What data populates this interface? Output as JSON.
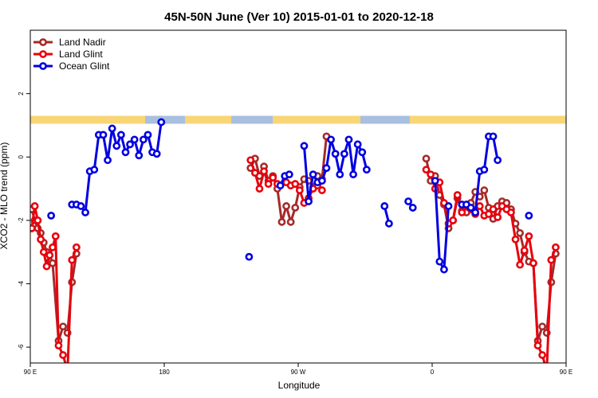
{
  "chart_data": {
    "type": "line",
    "title": "45N-50N June (Ver 10)   2015-01-01 to 2020-12-18",
    "xlabel": "Longitude",
    "ylabel": "XCO2 - MLO trend (ppm)",
    "xlim": [
      90,
      450
    ],
    "ylim": [
      -6.5,
      4.0
    ],
    "x_ticks": [
      {
        "value": 90,
        "label": "90 E"
      },
      {
        "value": 180,
        "label": "180"
      },
      {
        "value": 270,
        "label": "90 W"
      },
      {
        "value": 360,
        "label": "0"
      },
      {
        "value": 450,
        "label": "90 E"
      },
      {
        "value": 540,
        "label": "180"
      }
    ],
    "y_ticks": [
      {
        "value": 2,
        "label": "2"
      },
      {
        "value": 0,
        "label": "0"
      },
      {
        "value": -2,
        "label": "-2"
      },
      {
        "value": -4,
        "label": "-4"
      },
      {
        "value": -6,
        "label": "-6"
      }
    ],
    "grid": false,
    "legend_position": "top-left",
    "band": {
      "y_top": 1.3,
      "y_bottom": 1.05,
      "land_color": "#f8d676",
      "ocean_color": "#a9bfe0"
    },
    "series": [
      {
        "name": "Land Nadir",
        "color": "#a52a2a",
        "points": [
          [
            91,
            -1.65
          ],
          [
            93,
            -2.0
          ],
          [
            95,
            -2.25
          ],
          [
            97,
            -2.4
          ],
          [
            99,
            -2.7
          ],
          [
            101,
            -3.0
          ],
          [
            103,
            -3.3
          ],
          [
            105,
            -3.35
          ],
          [
            109,
            -5.8
          ],
          [
            112,
            -5.35
          ],
          [
            115,
            -5.55
          ],
          [
            118,
            -3.95
          ],
          [
            121,
            -3.05
          ],
          [
            238,
            -0.35
          ],
          [
            241,
            -0.05
          ],
          [
            244,
            -0.6
          ],
          [
            247,
            -0.3
          ],
          [
            250,
            -0.75
          ],
          [
            253,
            -0.6
          ],
          [
            256,
            -1.0
          ],
          [
            259,
            -2.05
          ],
          [
            262,
            -1.55
          ],
          [
            265,
            -2.05
          ],
          [
            268,
            -1.6
          ],
          [
            271,
            -0.95
          ],
          [
            274,
            -0.7
          ],
          [
            277,
            -0.75
          ],
          [
            280,
            -0.95
          ],
          [
            283,
            -0.6
          ],
          [
            286,
            -0.7
          ],
          [
            289,
            0.65
          ],
          [
            356,
            -0.05
          ],
          [
            359,
            -0.75
          ],
          [
            362,
            -0.6
          ],
          [
            365,
            -1.2
          ],
          [
            368,
            -1.5
          ],
          [
            371,
            -2.25
          ],
          [
            374,
            -2.0
          ],
          [
            377,
            -1.3
          ],
          [
            380,
            -1.7
          ],
          [
            383,
            -1.75
          ],
          [
            386,
            -1.45
          ],
          [
            389,
            -1.1
          ],
          [
            392,
            -1.25
          ],
          [
            395,
            -1.05
          ],
          [
            398,
            -1.6
          ],
          [
            401,
            -1.95
          ],
          [
            404,
            -1.55
          ],
          [
            407,
            -1.4
          ],
          [
            410,
            -1.45
          ],
          [
            413,
            -1.65
          ],
          [
            416,
            -2.1
          ],
          [
            419,
            -2.4
          ],
          [
            422,
            -3.0
          ],
          [
            425,
            -3.3
          ],
          [
            428,
            -3.35
          ],
          [
            431,
            -5.8
          ],
          [
            434,
            -5.35
          ],
          [
            437,
            -5.55
          ],
          [
            440,
            -3.95
          ],
          [
            443,
            -3.05
          ]
        ]
      },
      {
        "name": "Land Glint",
        "color": "#e8000b",
        "points": [
          [
            91,
            -2.25
          ],
          [
            93,
            -1.55
          ],
          [
            95,
            -2.0
          ],
          [
            97,
            -2.6
          ],
          [
            99,
            -3.0
          ],
          [
            101,
            -3.45
          ],
          [
            103,
            -3.1
          ],
          [
            105,
            -2.85
          ],
          [
            107,
            -2.5
          ],
          [
            109,
            -5.95
          ],
          [
            112,
            -6.25
          ],
          [
            115,
            -6.75
          ],
          [
            118,
            -3.25
          ],
          [
            121,
            -2.85
          ],
          [
            238,
            -0.1
          ],
          [
            241,
            -0.5
          ],
          [
            244,
            -1.0
          ],
          [
            247,
            -0.45
          ],
          [
            250,
            -0.85
          ],
          [
            253,
            -0.65
          ],
          [
            256,
            -0.85
          ],
          [
            262,
            -0.8
          ],
          [
            265,
            -0.9
          ],
          [
            268,
            -0.85
          ],
          [
            271,
            -1.05
          ],
          [
            274,
            -1.45
          ],
          [
            277,
            -1.3
          ],
          [
            280,
            -1.0
          ],
          [
            283,
            -0.9
          ],
          [
            286,
            -1.05
          ],
          [
            356,
            -0.4
          ],
          [
            359,
            -0.55
          ],
          [
            362,
            -1.0
          ],
          [
            365,
            -0.8
          ],
          [
            368,
            -1.45
          ],
          [
            371,
            -2.1
          ],
          [
            374,
            -2.0
          ],
          [
            377,
            -1.2
          ],
          [
            380,
            -1.75
          ],
          [
            383,
            -1.55
          ],
          [
            386,
            -1.65
          ],
          [
            389,
            -1.8
          ],
          [
            392,
            -1.55
          ],
          [
            395,
            -1.85
          ],
          [
            398,
            -1.8
          ],
          [
            401,
            -1.65
          ],
          [
            404,
            -1.9
          ],
          [
            407,
            -1.55
          ],
          [
            410,
            -1.65
          ],
          [
            413,
            -1.75
          ],
          [
            416,
            -2.6
          ],
          [
            419,
            -3.4
          ],
          [
            422,
            -2.95
          ],
          [
            425,
            -2.5
          ],
          [
            428,
            -3.35
          ],
          [
            431,
            -5.95
          ],
          [
            434,
            -6.25
          ],
          [
            437,
            -6.75
          ],
          [
            440,
            -3.25
          ],
          [
            443,
            -2.85
          ]
        ]
      },
      {
        "name": "Ocean Glint",
        "color": "#0000e0",
        "points": [
          [
            118,
            -1.5
          ],
          [
            121,
            -1.5
          ],
          [
            124,
            -1.55
          ],
          [
            127,
            -1.75
          ],
          [
            130,
            -0.45
          ],
          [
            133,
            -0.4
          ],
          [
            136,
            0.7
          ],
          [
            139,
            0.7
          ],
          [
            142,
            -0.1
          ],
          [
            145,
            0.9
          ],
          [
            148,
            0.35
          ],
          [
            151,
            0.7
          ],
          [
            154,
            0.15
          ],
          [
            157,
            0.4
          ],
          [
            160,
            0.55
          ],
          [
            163,
            0.05
          ],
          [
            166,
            0.55
          ],
          [
            169,
            0.7
          ],
          [
            172,
            0.15
          ],
          [
            175,
            0.1
          ],
          [
            178,
            1.1
          ],
          [
            258,
            -0.9
          ],
          [
            261,
            -0.6
          ],
          [
            264,
            -0.55
          ],
          [
            274,
            0.35
          ],
          [
            277,
            -1.4
          ],
          [
            280,
            -0.55
          ],
          [
            283,
            -0.8
          ],
          [
            286,
            -0.75
          ],
          [
            289,
            -0.35
          ],
          [
            292,
            0.55
          ],
          [
            295,
            0.1
          ],
          [
            298,
            -0.55
          ],
          [
            301,
            0.1
          ],
          [
            304,
            0.55
          ],
          [
            307,
            -0.55
          ],
          [
            310,
            0.4
          ],
          [
            313,
            0.15
          ],
          [
            316,
            -0.4
          ],
          [
            328,
            -1.55
          ],
          [
            331,
            -2.1
          ],
          [
            344,
            -1.4
          ],
          [
            347,
            -1.6
          ],
          [
            362,
            -0.75
          ],
          [
            365,
            -3.3
          ],
          [
            368,
            -3.55
          ],
          [
            371,
            -1.55
          ],
          [
            380,
            -1.5
          ],
          [
            383,
            -1.5
          ],
          [
            386,
            -1.6
          ],
          [
            389,
            -1.75
          ],
          [
            392,
            -0.45
          ],
          [
            395,
            -0.4
          ],
          [
            398,
            0.65
          ],
          [
            401,
            0.65
          ],
          [
            404,
            -0.1
          ]
        ]
      }
    ],
    "isolated_points": [
      {
        "series": "Ocean Glint",
        "x": 104,
        "y": -1.85
      },
      {
        "series": "Ocean Glint",
        "x": 237,
        "y": -3.15
      },
      {
        "series": "Ocean Glint",
        "x": 425,
        "y": -1.85
      }
    ]
  }
}
